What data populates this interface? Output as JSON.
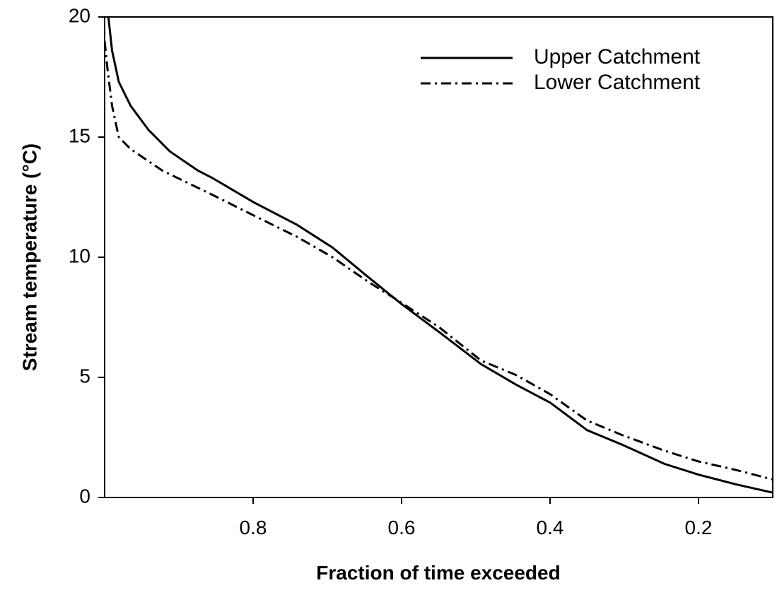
{
  "chart_data": {
    "type": "line",
    "xlabel": "Fraction of time exceeded",
    "ylabel": "Stream temperature (°C)",
    "xlim": [
      1.0,
      0.1
    ],
    "xticks": [
      0.8,
      0.6,
      0.4,
      0.2
    ],
    "ylim": [
      0,
      20
    ],
    "yticks": [
      0,
      5,
      10,
      15,
      20
    ],
    "legend": "upper right",
    "series": [
      {
        "name": "Upper Catchment",
        "color": "#000000",
        "dash": "solid",
        "x": [
          0.995,
          0.99,
          0.981,
          0.965,
          0.941,
          0.912,
          0.874,
          0.855,
          0.8,
          0.741,
          0.693,
          0.646,
          0.6,
          0.55,
          0.493,
          0.446,
          0.4,
          0.35,
          0.303,
          0.246,
          0.2,
          0.15,
          0.1
        ],
        "values": [
          20,
          18.6,
          17.3,
          16.3,
          15.3,
          14.4,
          13.6,
          13.3,
          12.3,
          11.35,
          10.4,
          9.2,
          8.05,
          6.9,
          5.55,
          4.7,
          3.95,
          2.8,
          2.2,
          1.4,
          0.95,
          0.55,
          0.2
        ]
      },
      {
        "name": "Lower Catchment",
        "color": "#000000",
        "dash": "dashdot",
        "x": [
          1.0,
          0.996,
          0.99,
          0.981,
          0.965,
          0.922,
          0.855,
          0.8,
          0.741,
          0.693,
          0.646,
          0.6,
          0.55,
          0.493,
          0.446,
          0.4,
          0.35,
          0.303,
          0.246,
          0.2,
          0.15,
          0.1
        ],
        "values": [
          19.0,
          17.8,
          16.3,
          15.0,
          14.5,
          13.6,
          12.6,
          11.75,
          10.85,
          10.0,
          9.0,
          8.1,
          7.1,
          5.7,
          5.1,
          4.3,
          3.2,
          2.6,
          1.95,
          1.5,
          1.15,
          0.75
        ]
      }
    ]
  }
}
